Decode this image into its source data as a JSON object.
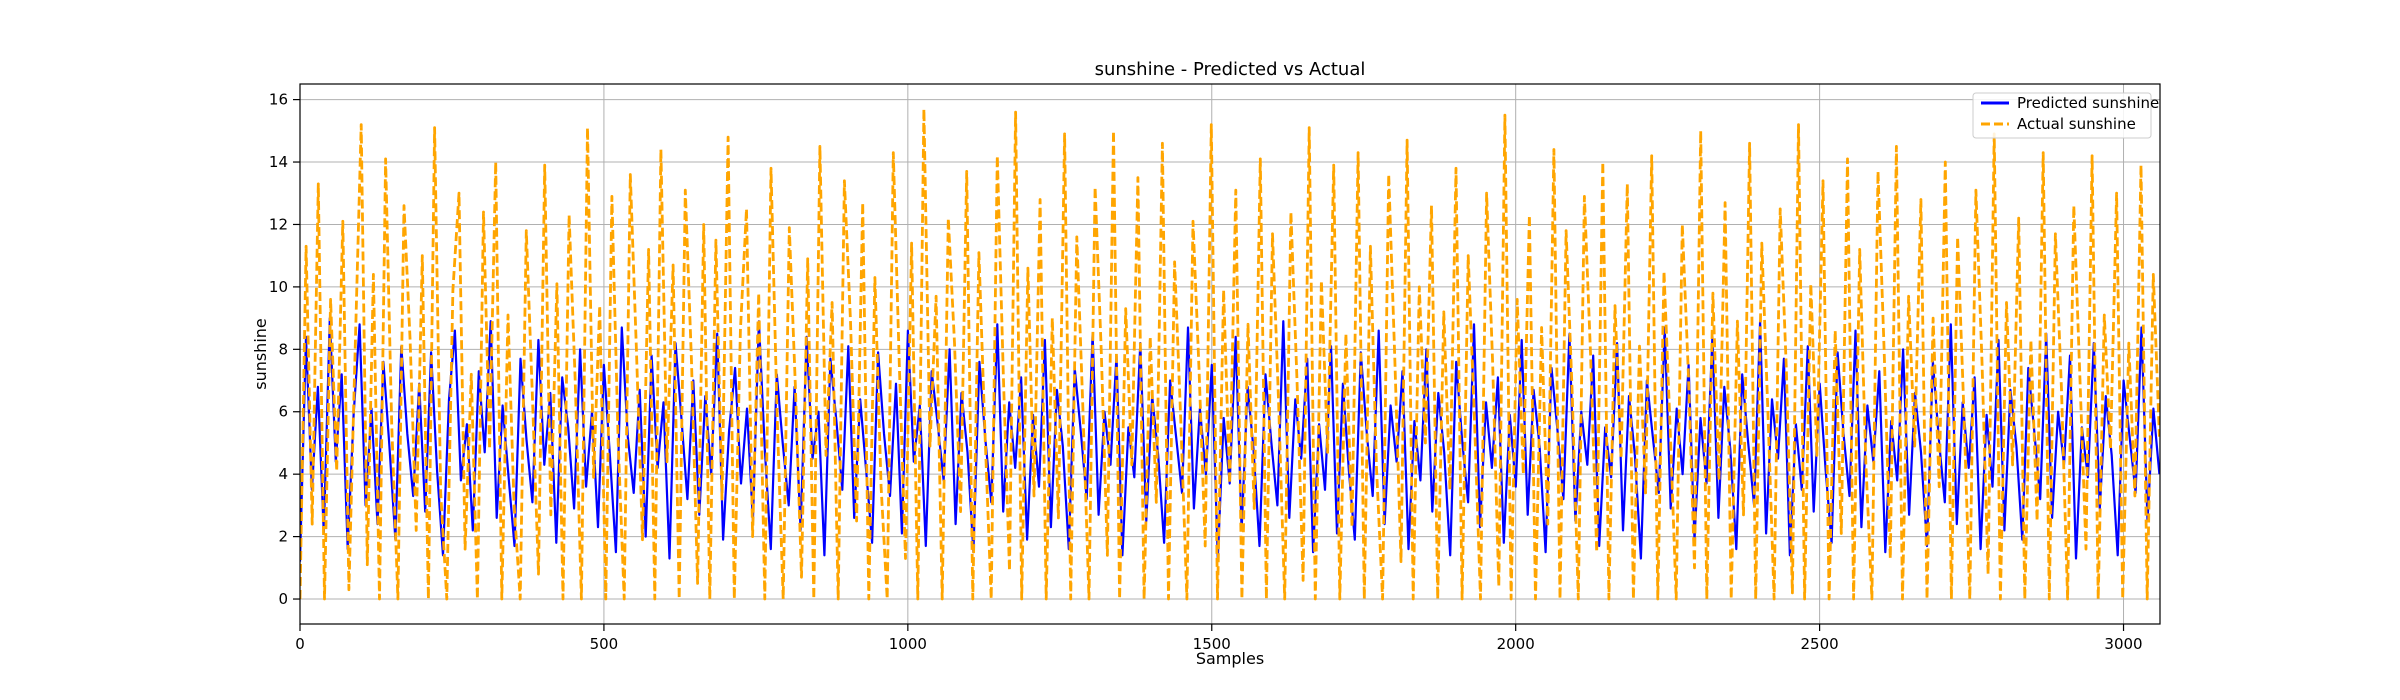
{
  "chart_data": {
    "type": "line",
    "title": "sunshine - Predicted vs Actual",
    "xlabel": "Samples",
    "ylabel": "sunshine",
    "xlim": [
      0,
      3060
    ],
    "ylim": [
      -0.8,
      16.5
    ],
    "xticks": [
      0,
      500,
      1000,
      1500,
      2000,
      2500,
      3000
    ],
    "yticks": [
      0,
      2,
      4,
      6,
      8,
      10,
      12,
      14,
      16
    ],
    "grid": true,
    "legend_position": "top-right",
    "n_samples": 3060,
    "series": [
      {
        "name": "Predicted sunshine",
        "color": "#0000ff",
        "style": "solid",
        "values": [
          1.2,
          8.4,
          3.5,
          6.8,
          2.1,
          9.0,
          4.4,
          7.2,
          1.6,
          5.9,
          8.8,
          3.0,
          6.1,
          2.4,
          7.6,
          4.9,
          1.9,
          8.1,
          5.3,
          3.3,
          6.9,
          2.8,
          7.9,
          4.1,
          1.4,
          6.4,
          8.6,
          3.8,
          5.6,
          2.2,
          7.3,
          4.7,
          8.9,
          2.6,
          6.2,
          3.9,
          1.7,
          7.7,
          5.1,
          3.1,
          8.3,
          4.3,
          6.6,
          1.8,
          7.1,
          5.5,
          2.9,
          8.0,
          3.6,
          6.0,
          2.3,
          7.5,
          4.6,
          1.5,
          8.7,
          5.2,
          3.4,
          6.7,
          2.0,
          7.8,
          4.2,
          6.3,
          1.3,
          8.2,
          5.8,
          3.2,
          7.0,
          2.7,
          6.5,
          4.0,
          8.5,
          1.9,
          5.4,
          7.4,
          3.7,
          6.1,
          2.5,
          8.9,
          4.8,
          1.6,
          7.2,
          5.0,
          3.0,
          6.8,
          2.2,
          8.4,
          4.5,
          6.0,
          1.4,
          7.7,
          5.7,
          3.5,
          8.1,
          2.6,
          6.4,
          4.1,
          1.8,
          7.9,
          5.3,
          3.3,
          6.9,
          2.1,
          8.6,
          4.4,
          6.2,
          1.7,
          7.3,
          5.6,
          3.8,
          8.0,
          2.4,
          6.6,
          4.7,
          1.5,
          7.6,
          5.1,
          3.1,
          8.8,
          2.8,
          6.3,
          4.2,
          7.1,
          1.9,
          5.9,
          3.6,
          8.3,
          2.3,
          6.7,
          4.9,
          1.6,
          7.4,
          5.4,
          3.2,
          8.5,
          2.7,
          6.0,
          4.3,
          7.8,
          1.4,
          5.5,
          3.9,
          8.2,
          2.5,
          6.5,
          4.6,
          1.8,
          7.0,
          5.2,
          3.4,
          8.7,
          2.9,
          6.1,
          4.0,
          7.5,
          1.3,
          5.8,
          3.7,
          8.4,
          2.2,
          6.8,
          4.8,
          1.7,
          7.2,
          5.0,
          3.0,
          8.9,
          2.6,
          6.4,
          4.5,
          7.7,
          1.5,
          5.6,
          3.5,
          8.1,
          2.1,
          6.9,
          4.1,
          1.9,
          7.9,
          5.3,
          3.3,
          8.6,
          2.4,
          6.2,
          4.4,
          7.3,
          1.6,
          5.7,
          3.8,
          8.0,
          2.8,
          6.6,
          4.7,
          1.4,
          7.6,
          5.1,
          3.1,
          8.8,
          2.3,
          6.3,
          4.2,
          7.1,
          1.8,
          5.9,
          3.6,
          8.3,
          2.7,
          6.7,
          4.9,
          1.5,
          7.4,
          5.4,
          3.2,
          8.5,
          2.5,
          6.0,
          4.3,
          7.8,
          1.7,
          5.5,
          3.9,
          8.2,
          2.2,
          6.5,
          4.6,
          1.3,
          7.0,
          5.2,
          3.4,
          8.7,
          2.9,
          6.1,
          4.0,
          7.5,
          1.9,
          5.8,
          3.7,
          8.4,
          2.6,
          6.8,
          4.8,
          1.6,
          7.2,
          5.0,
          3.0,
          8.9,
          2.1,
          6.4,
          4.5,
          7.7,
          1.4,
          5.6,
          3.5,
          8.1,
          2.8,
          6.9,
          4.1,
          1.8,
          7.9,
          5.3,
          3.3,
          8.6,
          2.3,
          6.2,
          4.4,
          7.3,
          1.5,
          5.7,
          3.8,
          8.0,
          2.7,
          6.6,
          4.7,
          1.7,
          7.6,
          5.1,
          3.1,
          8.8,
          2.4,
          6.3,
          4.2,
          7.1,
          1.6,
          5.9,
          3.6,
          8.3,
          2.2,
          6.7,
          4.9,
          1.9,
          7.4,
          5.4,
          3.2,
          8.5,
          2.6,
          6.0,
          4.3,
          7.8,
          1.3,
          5.5,
          3.9,
          8.2,
          2.9,
          6.5,
          4.6,
          1.4,
          7.0,
          5.2,
          3.4,
          8.7,
          2.5,
          6.1,
          4.0
        ]
      },
      {
        "name": "Actual sunshine",
        "color": "#ffa500",
        "style": "dashed",
        "values": [
          0.0,
          11.3,
          2.4,
          13.3,
          0.0,
          9.6,
          4.1,
          12.1,
          0.3,
          7.8,
          15.2,
          1.1,
          10.4,
          0.0,
          14.1,
          5.6,
          0.0,
          12.6,
          8.3,
          2.2,
          11.0,
          0.0,
          15.1,
          3.4,
          0.0,
          9.9,
          13.0,
          1.6,
          7.2,
          0.0,
          12.4,
          4.8,
          14.0,
          0.0,
          9.1,
          3.0,
          0.0,
          11.8,
          6.5,
          0.8,
          13.9,
          2.7,
          10.1,
          0.0,
          12.3,
          7.0,
          0.0,
          15.1,
          3.9,
          9.4,
          0.0,
          12.9,
          5.1,
          0.0,
          13.6,
          8.0,
          1.9,
          11.2,
          0.0,
          14.4,
          4.4,
          10.7,
          0.0,
          13.1,
          7.6,
          0.5,
          12.0,
          0.0,
          11.5,
          3.2,
          14.8,
          0.0,
          8.6,
          12.5,
          2.0,
          9.8,
          0.0,
          13.8,
          5.9,
          0.0,
          11.9,
          6.8,
          0.7,
          10.9,
          0.0,
          14.5,
          4.6,
          9.5,
          0.0,
          13.4,
          8.9,
          2.5,
          12.7,
          0.0,
          10.3,
          3.6,
          0.0,
          14.3,
          7.4,
          1.3,
          11.4,
          0.0,
          15.7,
          4.9,
          9.7,
          0.0,
          12.2,
          8.2,
          2.8,
          13.7,
          0.0,
          11.1,
          5.3,
          0.0,
          14.2,
          7.1,
          0.9,
          15.6,
          0.0,
          10.6,
          3.3,
          12.8,
          0.0,
          9.0,
          2.6,
          14.9,
          0.0,
          11.6,
          6.1,
          0.0,
          13.2,
          7.9,
          1.4,
          15.0,
          0.0,
          9.3,
          4.3,
          13.5,
          0.0,
          8.4,
          3.1,
          14.6,
          0.0,
          10.8,
          5.7,
          0.0,
          12.1,
          7.3,
          1.7,
          15.2,
          0.0,
          9.9,
          3.7,
          13.1,
          0.0,
          8.8,
          2.9,
          14.1,
          0.0,
          11.7,
          6.3,
          0.0,
          12.4,
          7.0,
          0.6,
          15.1,
          0.0,
          10.2,
          4.7,
          13.9,
          0.0,
          8.5,
          2.3,
          14.3,
          0.0,
          11.3,
          4.2,
          0.0,
          13.6,
          7.7,
          1.2,
          14.7,
          0.0,
          10.0,
          5.0,
          12.6,
          0.0,
          9.2,
          3.5,
          13.8,
          0.0,
          11.0,
          5.8,
          0.0,
          13.0,
          7.5,
          0.4,
          15.5,
          0.0,
          9.6,
          4.0,
          12.3,
          0.0,
          8.7,
          2.4,
          14.4,
          0.0,
          11.8,
          6.6,
          0.0,
          12.9,
          7.8,
          1.5,
          14.0,
          0.0,
          9.4,
          4.5,
          13.3,
          0.0,
          8.1,
          3.4,
          14.2,
          0.0,
          10.5,
          5.5,
          0.0,
          12.0,
          7.2,
          1.0,
          15.0,
          0.0,
          9.8,
          3.8,
          12.7,
          0.0,
          8.9,
          2.7,
          14.6,
          0.0,
          11.4,
          6.0,
          0.0,
          12.5,
          7.4,
          0.2,
          15.2,
          0.0,
          10.1,
          4.6,
          13.4,
          0.0,
          8.6,
          2.1,
          14.1,
          0.0,
          11.2,
          4.4,
          0.0,
          13.7,
          7.9,
          1.3,
          14.5,
          0.0,
          9.7,
          4.9,
          12.8,
          0.0,
          9.0,
          3.6,
          14.0,
          0.0,
          11.6,
          6.2,
          0.0,
          13.1,
          7.6,
          0.8,
          14.9,
          0.0,
          9.5,
          4.3,
          12.2,
          0.0,
          8.3,
          2.5,
          14.3,
          0.0,
          11.7,
          6.7,
          0.0,
          12.6,
          7.1,
          1.6,
          14.2,
          0.0,
          9.1,
          4.8,
          13.0,
          0.0,
          8.2,
          3.3,
          13.9,
          0.0,
          10.4,
          5.2
        ]
      }
    ]
  }
}
